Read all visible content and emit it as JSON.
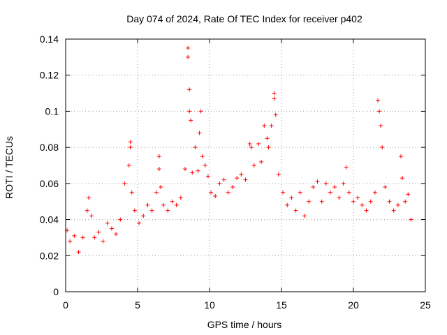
{
  "chart_data": {
    "type": "scatter",
    "title": "Day 074 of 2024, Rate Of TEC Index for receiver p402",
    "xlabel": "GPS time / hours",
    "ylabel": "ROTI / TECUs",
    "xlim": [
      0,
      25
    ],
    "ylim": [
      0,
      0.14
    ],
    "xticks": [
      0,
      5,
      10,
      15,
      20,
      25
    ],
    "xtick_labels": [
      "0",
      "5",
      "10",
      "15",
      "20",
      "25"
    ],
    "yticks": [
      0,
      0.02,
      0.04,
      0.06,
      0.08,
      0.1,
      0.12,
      0.14
    ],
    "ytick_labels": [
      "0",
      "0.02",
      "0.04",
      "0.06",
      "0.08",
      "0.1",
      "0.12",
      "0.14"
    ],
    "grid": true,
    "marker": "+",
    "color": "#ff0000",
    "series": [
      {
        "name": "ROTI",
        "x": [
          0.1,
          0.3,
          0.6,
          0.9,
          1.2,
          1.5,
          1.6,
          1.8,
          2.0,
          2.3,
          2.6,
          2.9,
          3.2,
          3.5,
          3.8,
          4.1,
          4.4,
          4.5,
          4.5,
          4.6,
          4.8,
          5.1,
          5.4,
          5.7,
          6.0,
          6.3,
          6.5,
          6.5,
          6.6,
          6.8,
          7.1,
          7.4,
          7.7,
          8.0,
          8.3,
          8.5,
          8.5,
          8.6,
          8.6,
          8.7,
          8.8,
          9.0,
          9.2,
          9.3,
          9.4,
          9.5,
          9.7,
          9.9,
          10.1,
          10.4,
          10.7,
          11.0,
          11.3,
          11.6,
          11.9,
          12.2,
          12.5,
          12.8,
          12.9,
          13.1,
          13.4,
          13.6,
          13.8,
          14.0,
          14.1,
          14.3,
          14.5,
          14.5,
          14.6,
          14.8,
          15.1,
          15.4,
          15.7,
          16.0,
          16.3,
          16.6,
          16.9,
          17.2,
          17.5,
          17.8,
          18.1,
          18.4,
          18.7,
          19.0,
          19.3,
          19.5,
          19.7,
          20.0,
          20.3,
          20.6,
          20.9,
          21.2,
          21.5,
          21.7,
          21.8,
          21.9,
          22.0,
          22.2,
          22.5,
          22.8,
          23.1,
          23.3,
          23.4,
          23.6,
          23.8,
          24.0
        ],
        "y": [
          0.034,
          0.028,
          0.031,
          0.022,
          0.03,
          0.045,
          0.052,
          0.042,
          0.03,
          0.033,
          0.028,
          0.038,
          0.035,
          0.032,
          0.04,
          0.06,
          0.07,
          0.083,
          0.08,
          0.055,
          0.045,
          0.038,
          0.042,
          0.048,
          0.045,
          0.055,
          0.075,
          0.068,
          0.058,
          0.048,
          0.045,
          0.05,
          0.048,
          0.052,
          0.068,
          0.135,
          0.13,
          0.112,
          0.1,
          0.095,
          0.066,
          0.08,
          0.067,
          0.088,
          0.1,
          0.075,
          0.07,
          0.064,
          0.055,
          0.053,
          0.06,
          0.062,
          0.055,
          0.058,
          0.063,
          0.065,
          0.062,
          0.082,
          0.08,
          0.07,
          0.082,
          0.072,
          0.092,
          0.085,
          0.08,
          0.092,
          0.11,
          0.107,
          0.098,
          0.065,
          0.055,
          0.048,
          0.052,
          0.045,
          0.055,
          0.042,
          0.05,
          0.058,
          0.061,
          0.05,
          0.06,
          0.055,
          0.058,
          0.052,
          0.06,
          0.069,
          0.055,
          0.05,
          0.052,
          0.048,
          0.045,
          0.05,
          0.055,
          0.106,
          0.1,
          0.092,
          0.08,
          0.058,
          0.05,
          0.045,
          0.048,
          0.075,
          0.063,
          0.05,
          0.054,
          0.04
        ]
      }
    ]
  }
}
